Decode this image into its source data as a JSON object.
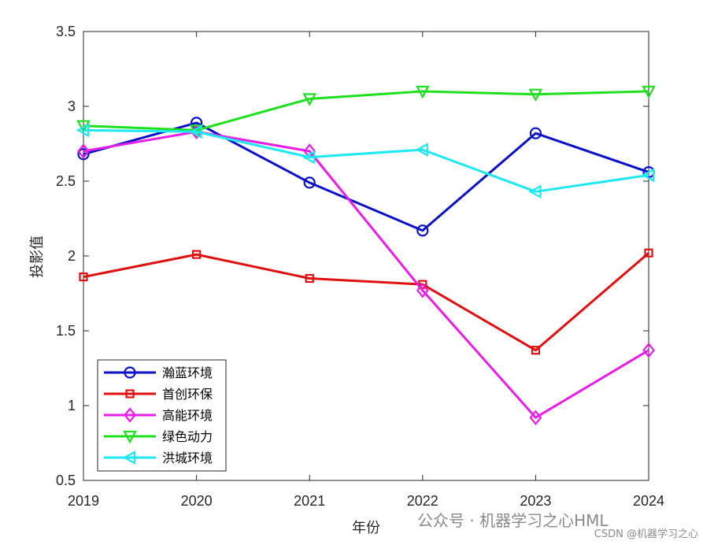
{
  "chart_data": {
    "type": "line",
    "xlabel": "年份",
    "ylabel": "投影值",
    "x": [
      2019,
      2020,
      2021,
      2022,
      2023,
      2024
    ],
    "xlim": [
      2019,
      2024
    ],
    "ylim": [
      0.5,
      3.5
    ],
    "yticks": [
      0.5,
      1,
      1.5,
      2,
      2.5,
      3,
      3.5
    ],
    "ytick_labels": [
      "0.5",
      "1",
      "1.5",
      "2",
      "2.5",
      "3",
      "3.5"
    ],
    "xtick_labels": [
      "2019",
      "2020",
      "2021",
      "2022",
      "2023",
      "2024"
    ],
    "grid": false,
    "legend_position": "bottom-left",
    "series": [
      {
        "name": "瀚蓝环境",
        "color": "#0a12c8",
        "marker": "circle",
        "values": [
          2.68,
          2.89,
          2.49,
          2.17,
          2.82,
          2.56
        ]
      },
      {
        "name": "首创环保",
        "color": "#e01010",
        "marker": "square",
        "values": [
          1.86,
          2.01,
          1.85,
          1.81,
          1.37,
          2.02
        ]
      },
      {
        "name": "高能环境",
        "color": "#e81ee8",
        "marker": "diamond",
        "values": [
          2.7,
          2.83,
          2.7,
          1.77,
          0.92,
          1.37
        ]
      },
      {
        "name": "绿色动力",
        "color": "#1ee01e",
        "marker": "triangle-down",
        "values": [
          2.87,
          2.84,
          3.05,
          3.1,
          3.08,
          3.1
        ]
      },
      {
        "name": "洪城环境",
        "color": "#1ee8f0",
        "marker": "triangle-left",
        "values": [
          2.84,
          2.83,
          2.66,
          2.71,
          2.43,
          2.54
        ]
      }
    ]
  },
  "watermark": {
    "main_text": "公众号 · 机器学习之心HML",
    "credit_text": "CSDN @机器学习之心"
  }
}
